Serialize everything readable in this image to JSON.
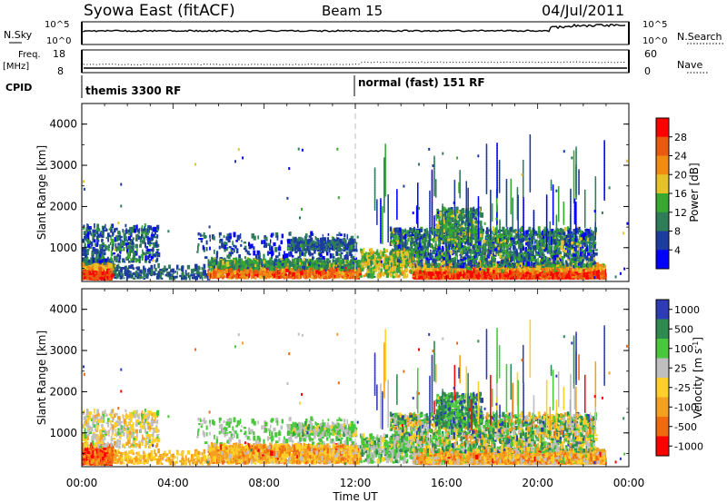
{
  "header": {
    "title": "Syowa East (fitACF)",
    "beam": "Beam 15",
    "date": "04/Jul/2011"
  },
  "top_panels": {
    "nsky": {
      "label": "N.Sky",
      "ticks": [
        "10^5",
        "10^0"
      ],
      "right_ticks": [
        "10^5",
        "10^0"
      ],
      "right_label": "N.Search"
    },
    "freq": {
      "label_top": "Freq.",
      "label_bottom": "[MHz]",
      "ticks": [
        "18",
        "8"
      ],
      "right_ticks": [
        "60",
        "0"
      ],
      "right_label": "Nave"
    },
    "cpid": {
      "label": "CPID",
      "modes": [
        {
          "start_hour": 0,
          "text": "themis 3300 RF"
        },
        {
          "start_hour": 12,
          "text": "normal (fast) 151 RF"
        }
      ]
    }
  },
  "chart_data": [
    {
      "type": "heatmap",
      "parameter": "Power",
      "colorbar_label": "Power [dB]",
      "colorbar_ticks": [
        "28",
        "24",
        "20",
        "16",
        "12",
        "8",
        "4"
      ],
      "colors": [
        "#0000ff",
        "#1c3ca0",
        "#2e7c58",
        "#37a832",
        "#e6c22a",
        "#f08c14",
        "#e85a10",
        "#ff0000"
      ],
      "ylabel": "Slant Range [km]",
      "yticks": [
        "4000",
        "3000",
        "2000",
        "1000"
      ],
      "ylim": [
        180,
        4500
      ],
      "xlim": [
        0,
        24
      ],
      "xlabel": "",
      "features": [
        {
          "x": [
            0.0,
            1.2
          ],
          "y": [
            200,
            700
          ],
          "level": "high"
        },
        {
          "x": [
            0.4,
            3.2
          ],
          "y": [
            600,
            1500
          ],
          "level": "low"
        },
        {
          "x": [
            5.5,
            12.0
          ],
          "y": [
            250,
            700
          ],
          "level": "medium"
        },
        {
          "x": [
            12.5,
            22.8
          ],
          "y": [
            220,
            2000
          ],
          "level": "mixed"
        }
      ]
    },
    {
      "type": "heatmap",
      "parameter": "Velocity",
      "colorbar_label": "Velocity [m s^-1]",
      "colorbar_ticks": [
        "1000",
        "500",
        "100",
        "25",
        "-25",
        "-100",
        "-500",
        "-1000"
      ],
      "colors": [
        "#2d3cb4",
        "#2e8a4e",
        "#49c83c",
        "#bfbfbf",
        "#ffd02a",
        "#f4a020",
        "#f06a10",
        "#ff0000"
      ],
      "ylabel": "Slant Range [km]",
      "yticks": [
        "4000",
        "3000",
        "2000",
        "1000"
      ],
      "ylim": [
        180,
        4500
      ],
      "xlim": [
        0,
        24
      ],
      "xlabel": "Time UT",
      "xticks": [
        "00:00",
        "04:00",
        "08:00",
        "12:00",
        "16:00",
        "20:00",
        "00:00"
      ]
    }
  ]
}
